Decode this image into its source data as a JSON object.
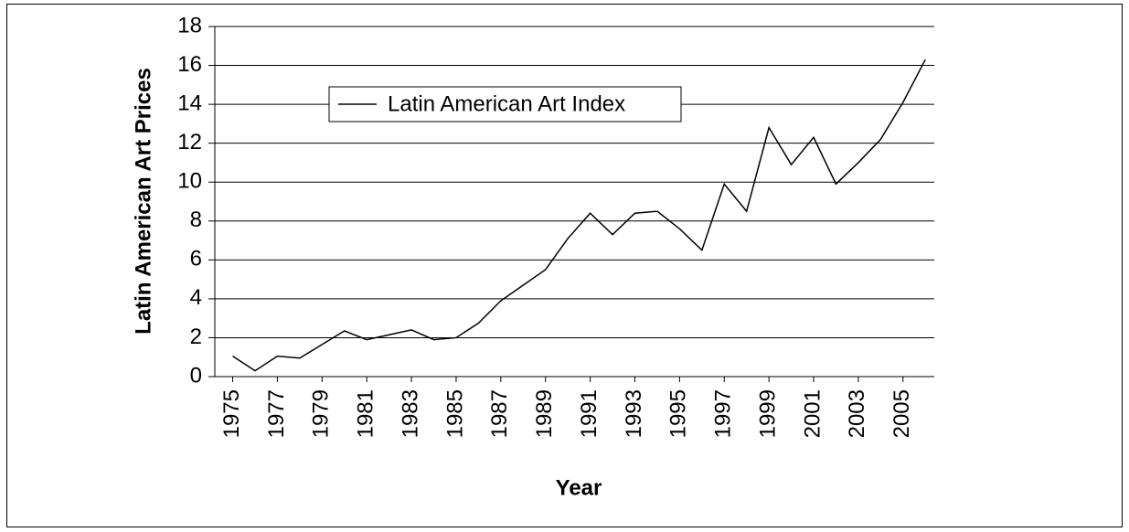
{
  "chart_data": {
    "type": "line",
    "x_label": "Year",
    "y_label": "Latin American Art Prices",
    "x": [
      1975,
      1976,
      1977,
      1978,
      1979,
      1980,
      1981,
      1982,
      1983,
      1984,
      1985,
      1986,
      1987,
      1988,
      1989,
      1990,
      1991,
      1992,
      1993,
      1994,
      1995,
      1996,
      1997,
      1998,
      1999,
      2000,
      2001,
      2002,
      2003,
      2004,
      2005,
      2006
    ],
    "series": [
      {
        "name": "Latin American Art Index",
        "color": "#000000",
        "values": [
          1.05,
          0.3,
          1.05,
          0.95,
          1.65,
          2.35,
          1.9,
          2.15,
          2.4,
          1.9,
          2.0,
          2.75,
          3.9,
          4.7,
          5.5,
          7.1,
          8.4,
          7.3,
          8.4,
          8.5,
          7.6,
          6.5,
          9.9,
          8.5,
          12.8,
          10.9,
          12.3,
          9.9,
          11.0,
          12.2,
          14.1,
          16.3
        ]
      }
    ],
    "xlim": [
      1974.2,
      2006.4
    ],
    "xticks": [
      1975,
      1977,
      1979,
      1981,
      1983,
      1985,
      1987,
      1989,
      1991,
      1993,
      1995,
      1997,
      1999,
      2001,
      2003,
      2005
    ],
    "ylim": [
      0,
      18
    ],
    "yticks": [
      0,
      2,
      4,
      6,
      8,
      10,
      12,
      14,
      16,
      18
    ],
    "grid": true,
    "legend": "upper left"
  }
}
